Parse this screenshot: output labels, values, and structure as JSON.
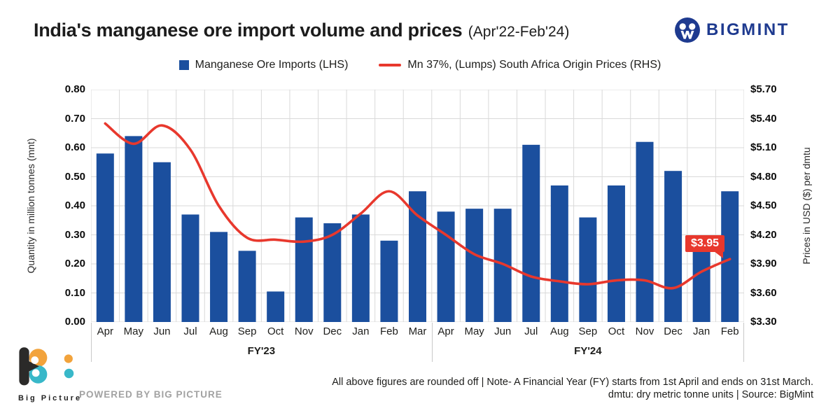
{
  "header": {
    "title": "India's manganese ore import volume and prices",
    "subtitle": "(Apr'22-Feb'24)",
    "brand": "BIGMINT"
  },
  "chart_data": {
    "type": "combo",
    "title": "India's manganese ore import volume and prices (Apr'22-Feb'24)",
    "categories": [
      "Apr",
      "May",
      "Jun",
      "Jul",
      "Aug",
      "Sep",
      "Oct",
      "Nov",
      "Dec",
      "Jan",
      "Feb",
      "Mar",
      "Apr",
      "May",
      "Jun",
      "Jul",
      "Aug",
      "Sep",
      "Oct",
      "Nov",
      "Dec",
      "Jan",
      "Feb"
    ],
    "x_groups": [
      {
        "label": "FY'23",
        "span": 12
      },
      {
        "label": "FY'24",
        "span": 11
      }
    ],
    "series": [
      {
        "name": "Manganese Ore Imports (LHS)",
        "type": "bar",
        "axis": "left",
        "color": "#1b4f9e",
        "values": [
          0.58,
          0.64,
          0.55,
          0.37,
          0.31,
          0.245,
          0.105,
          0.36,
          0.34,
          0.37,
          0.28,
          0.45,
          0.38,
          0.39,
          0.39,
          0.61,
          0.47,
          0.36,
          0.47,
          0.62,
          0.52,
          0.26,
          0.45
        ]
      },
      {
        "name": "Mn 37%, (Lumps) South Africa Origin Prices (RHS)",
        "type": "line",
        "axis": "right",
        "color": "#e8382d",
        "values": [
          5.35,
          5.14,
          5.33,
          5.08,
          4.5,
          4.17,
          4.15,
          4.13,
          4.2,
          4.42,
          4.65,
          4.4,
          4.2,
          4.0,
          3.9,
          3.77,
          3.72,
          3.69,
          3.73,
          3.73,
          3.65,
          3.82,
          3.95
        ]
      }
    ],
    "left_axis": {
      "title": "Quantity in million tonnes (mnt)",
      "min": 0,
      "max": 0.8,
      "ticks": [
        "0.00",
        "0.10",
        "0.20",
        "0.30",
        "0.40",
        "0.50",
        "0.60",
        "0.70",
        "0.80"
      ]
    },
    "right_axis": {
      "title": "Prices in USD ($) per dmtu",
      "min": 3.3,
      "max": 5.7,
      "ticks": [
        "$3.30",
        "$3.60",
        "$3.90",
        "$4.20",
        "$4.50",
        "$4.80",
        "$5.10",
        "$5.40",
        "$5.70"
      ]
    },
    "grid": true,
    "legend_position": "top",
    "annotation": {
      "text": "$3.95",
      "category_index": 22,
      "value": 3.95
    }
  },
  "footer": {
    "logo_text": "Big Picture",
    "powered_by": "POWERED BY BIG PICTURE",
    "note_line1": "All above figures are rounded off | Note- A Financial Year (FY) starts from 1st April and ends on 31st March.",
    "note_line2": "dmtu: dry metric tonne units | Source: BigMint"
  }
}
